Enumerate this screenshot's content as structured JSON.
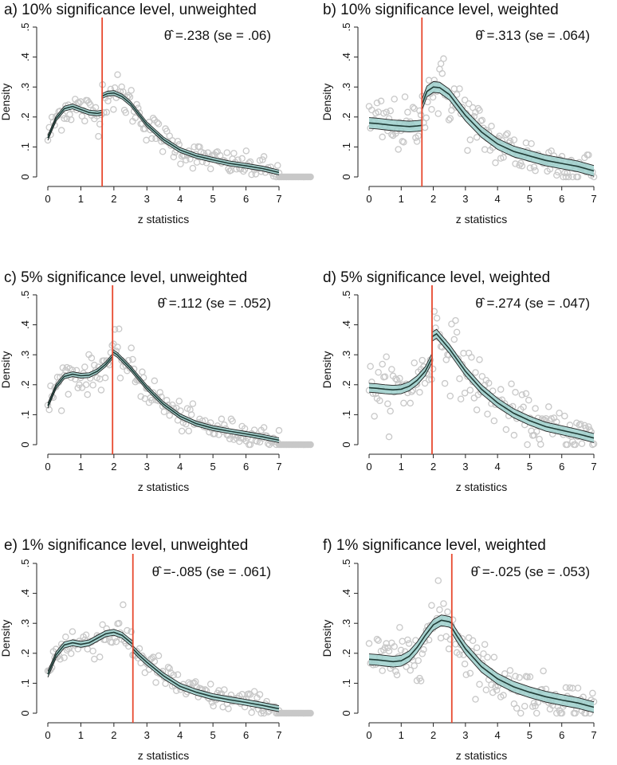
{
  "chart_data": [
    {
      "type": "scatter",
      "panel": "a",
      "title": "a) 10% significance level, unweighted",
      "theta_symbol": "θ̂",
      "theta_text": "=.238 (se = .06)",
      "xlabel": "z statistics",
      "ylabel": "Density",
      "xlim": [
        0,
        8
      ],
      "ylim": [
        0,
        0.5
      ],
      "xticks": [
        "0",
        "1",
        "2",
        "3",
        "4",
        "5",
        "6",
        "7"
      ],
      "yticks": [
        "0",
        ".1",
        ".2",
        ".3",
        ".4",
        ".5"
      ],
      "threshold": 1.645,
      "fit_x": [
        0,
        0.25,
        0.5,
        0.75,
        1.0,
        1.25,
        1.5,
        1.645,
        1.646,
        1.8,
        2.0,
        2.25,
        2.5,
        2.75,
        3.0,
        3.5,
        4.0,
        4.5,
        5.0,
        5.5,
        6.0,
        6.5,
        7.0
      ],
      "fit_y": [
        0.13,
        0.195,
        0.228,
        0.235,
        0.225,
        0.215,
        0.212,
        0.215,
        0.27,
        0.278,
        0.28,
        0.268,
        0.245,
        0.21,
        0.175,
        0.125,
        0.09,
        0.07,
        0.057,
        0.045,
        0.037,
        0.028,
        0.015
      ],
      "fit_band": 0.008,
      "scatter_noise": 0.03
    },
    {
      "type": "scatter",
      "panel": "b",
      "title": "b) 10% significance level, weighted",
      "theta_symbol": "θ̂",
      "theta_text": "=.313 (se = .064)",
      "xlabel": "z statistics",
      "ylabel": "Density",
      "xlim": [
        0,
        7.3
      ],
      "ylim": [
        0,
        0.5
      ],
      "xticks": [
        "0",
        "1",
        "2",
        "3",
        "4",
        "5",
        "6",
        "7"
      ],
      "yticks": [
        "0",
        ".1",
        ".2",
        ".3",
        ".4",
        ".5"
      ],
      "threshold": 1.645,
      "fit_x": [
        0,
        0.25,
        0.5,
        0.75,
        1.0,
        1.25,
        1.5,
        1.645,
        1.646,
        1.8,
        2.0,
        2.2,
        2.5,
        2.75,
        3.0,
        3.5,
        4.0,
        4.5,
        5.0,
        5.5,
        6.0,
        6.5,
        7.0
      ],
      "fit_y": [
        0.18,
        0.178,
        0.175,
        0.172,
        0.17,
        0.168,
        0.17,
        0.172,
        0.24,
        0.285,
        0.3,
        0.298,
        0.275,
        0.24,
        0.205,
        0.15,
        0.11,
        0.085,
        0.07,
        0.055,
        0.045,
        0.035,
        0.02
      ],
      "fit_band": 0.018,
      "scatter_noise": 0.05
    },
    {
      "type": "scatter",
      "panel": "c",
      "title": "c) 5% significance level, unweighted",
      "theta_symbol": "θ̂",
      "theta_text": "=.112 (se = .052)",
      "xlabel": "z statistics",
      "ylabel": "Density",
      "xlim": [
        0,
        8
      ],
      "ylim": [
        0,
        0.5
      ],
      "xticks": [
        "0",
        "1",
        "2",
        "3",
        "4",
        "5",
        "6",
        "7"
      ],
      "yticks": [
        "0",
        ".1",
        ".2",
        ".3",
        ".4",
        ".5"
      ],
      "threshold": 1.96,
      "fit_x": [
        0,
        0.25,
        0.5,
        0.75,
        1.0,
        1.25,
        1.5,
        1.75,
        1.96,
        1.961,
        2.1,
        2.5,
        3.0,
        3.5,
        4.0,
        4.5,
        5.0,
        5.5,
        6.0,
        6.5,
        7.0
      ],
      "fit_y": [
        0.13,
        0.195,
        0.228,
        0.235,
        0.23,
        0.232,
        0.245,
        0.268,
        0.295,
        0.31,
        0.3,
        0.255,
        0.19,
        0.135,
        0.095,
        0.07,
        0.055,
        0.045,
        0.036,
        0.026,
        0.015
      ],
      "fit_band": 0.008,
      "scatter_noise": 0.03
    },
    {
      "type": "scatter",
      "panel": "d",
      "title": "d) 5% significance level, weighted",
      "theta_symbol": "θ̂",
      "theta_text": "=.274 (se = .047)",
      "xlabel": "z statistics",
      "ylabel": "Density",
      "xlim": [
        0,
        7.3
      ],
      "ylim": [
        0,
        0.5
      ],
      "xticks": [
        "0",
        "1",
        "2",
        "3",
        "4",
        "5",
        "6",
        "7"
      ],
      "yticks": [
        "0",
        ".1",
        ".2",
        ".3",
        ".4",
        ".5"
      ],
      "threshold": 1.96,
      "fit_x": [
        0,
        0.25,
        0.5,
        0.75,
        1.0,
        1.25,
        1.5,
        1.75,
        1.96,
        1.961,
        2.1,
        2.5,
        3.0,
        3.5,
        4.0,
        4.5,
        5.0,
        5.5,
        6.0,
        6.5,
        7.0
      ],
      "fit_y": [
        0.19,
        0.188,
        0.185,
        0.183,
        0.185,
        0.195,
        0.215,
        0.245,
        0.29,
        0.36,
        0.37,
        0.32,
        0.245,
        0.185,
        0.14,
        0.105,
        0.08,
        0.06,
        0.048,
        0.036,
        0.022
      ],
      "fit_band": 0.015,
      "scatter_noise": 0.05
    },
    {
      "type": "scatter",
      "panel": "e",
      "title": "e) 1% significance level, unweighted",
      "theta_symbol": "θ̂",
      "theta_text": "=-.085 (se = .061)",
      "xlabel": "z statistics",
      "ylabel": "Density",
      "xlim": [
        0,
        8
      ],
      "ylim": [
        0,
        0.5
      ],
      "xticks": [
        "0",
        "1",
        "2",
        "3",
        "4",
        "5",
        "6",
        "7"
      ],
      "yticks": [
        "0",
        ".1",
        ".2",
        ".3",
        ".4",
        ".5"
      ],
      "threshold": 2.576,
      "fit_x": [
        0,
        0.25,
        0.5,
        0.75,
        1.0,
        1.25,
        1.5,
        1.75,
        2.0,
        2.25,
        2.576,
        2.577,
        2.75,
        3.0,
        3.5,
        4.0,
        4.5,
        5.0,
        5.5,
        6.0,
        6.5,
        7.0
      ],
      "fit_y": [
        0.13,
        0.195,
        0.228,
        0.235,
        0.23,
        0.235,
        0.25,
        0.265,
        0.27,
        0.26,
        0.23,
        0.215,
        0.195,
        0.17,
        0.125,
        0.09,
        0.07,
        0.055,
        0.045,
        0.036,
        0.026,
        0.015
      ],
      "fit_band": 0.01,
      "scatter_noise": 0.03
    },
    {
      "type": "scatter",
      "panel": "f",
      "title": "f) 1% significance level, weighted",
      "theta_symbol": "θ̂",
      "theta_text": "=-.025 (se = .053)",
      "xlabel": "z statistics",
      "ylabel": "Density",
      "xlim": [
        0,
        7.3
      ],
      "ylim": [
        0,
        0.5
      ],
      "xticks": [
        "0",
        "1",
        "2",
        "3",
        "4",
        "5",
        "6",
        "7"
      ],
      "yticks": [
        "0",
        ".1",
        ".2",
        ".3",
        ".4",
        ".5"
      ],
      "threshold": 2.576,
      "fit_x": [
        0,
        0.25,
        0.5,
        0.75,
        1.0,
        1.25,
        1.5,
        1.75,
        2.0,
        2.25,
        2.5,
        2.576,
        2.577,
        2.75,
        3.0,
        3.5,
        4.0,
        4.5,
        5.0,
        5.5,
        6.0,
        6.5,
        7.0
      ],
      "fit_y": [
        0.18,
        0.178,
        0.175,
        0.172,
        0.175,
        0.19,
        0.22,
        0.26,
        0.295,
        0.31,
        0.305,
        0.3,
        0.285,
        0.255,
        0.215,
        0.155,
        0.115,
        0.088,
        0.07,
        0.055,
        0.044,
        0.034,
        0.02
      ],
      "fit_band": 0.018,
      "scatter_noise": 0.05
    }
  ],
  "colors": {
    "threshold_line": "#e8492f",
    "fit_line": "#1f3b36",
    "ci_fill": "#9ccfcb",
    "ci_line": "#222222",
    "scatter": "#c8c8c8"
  }
}
